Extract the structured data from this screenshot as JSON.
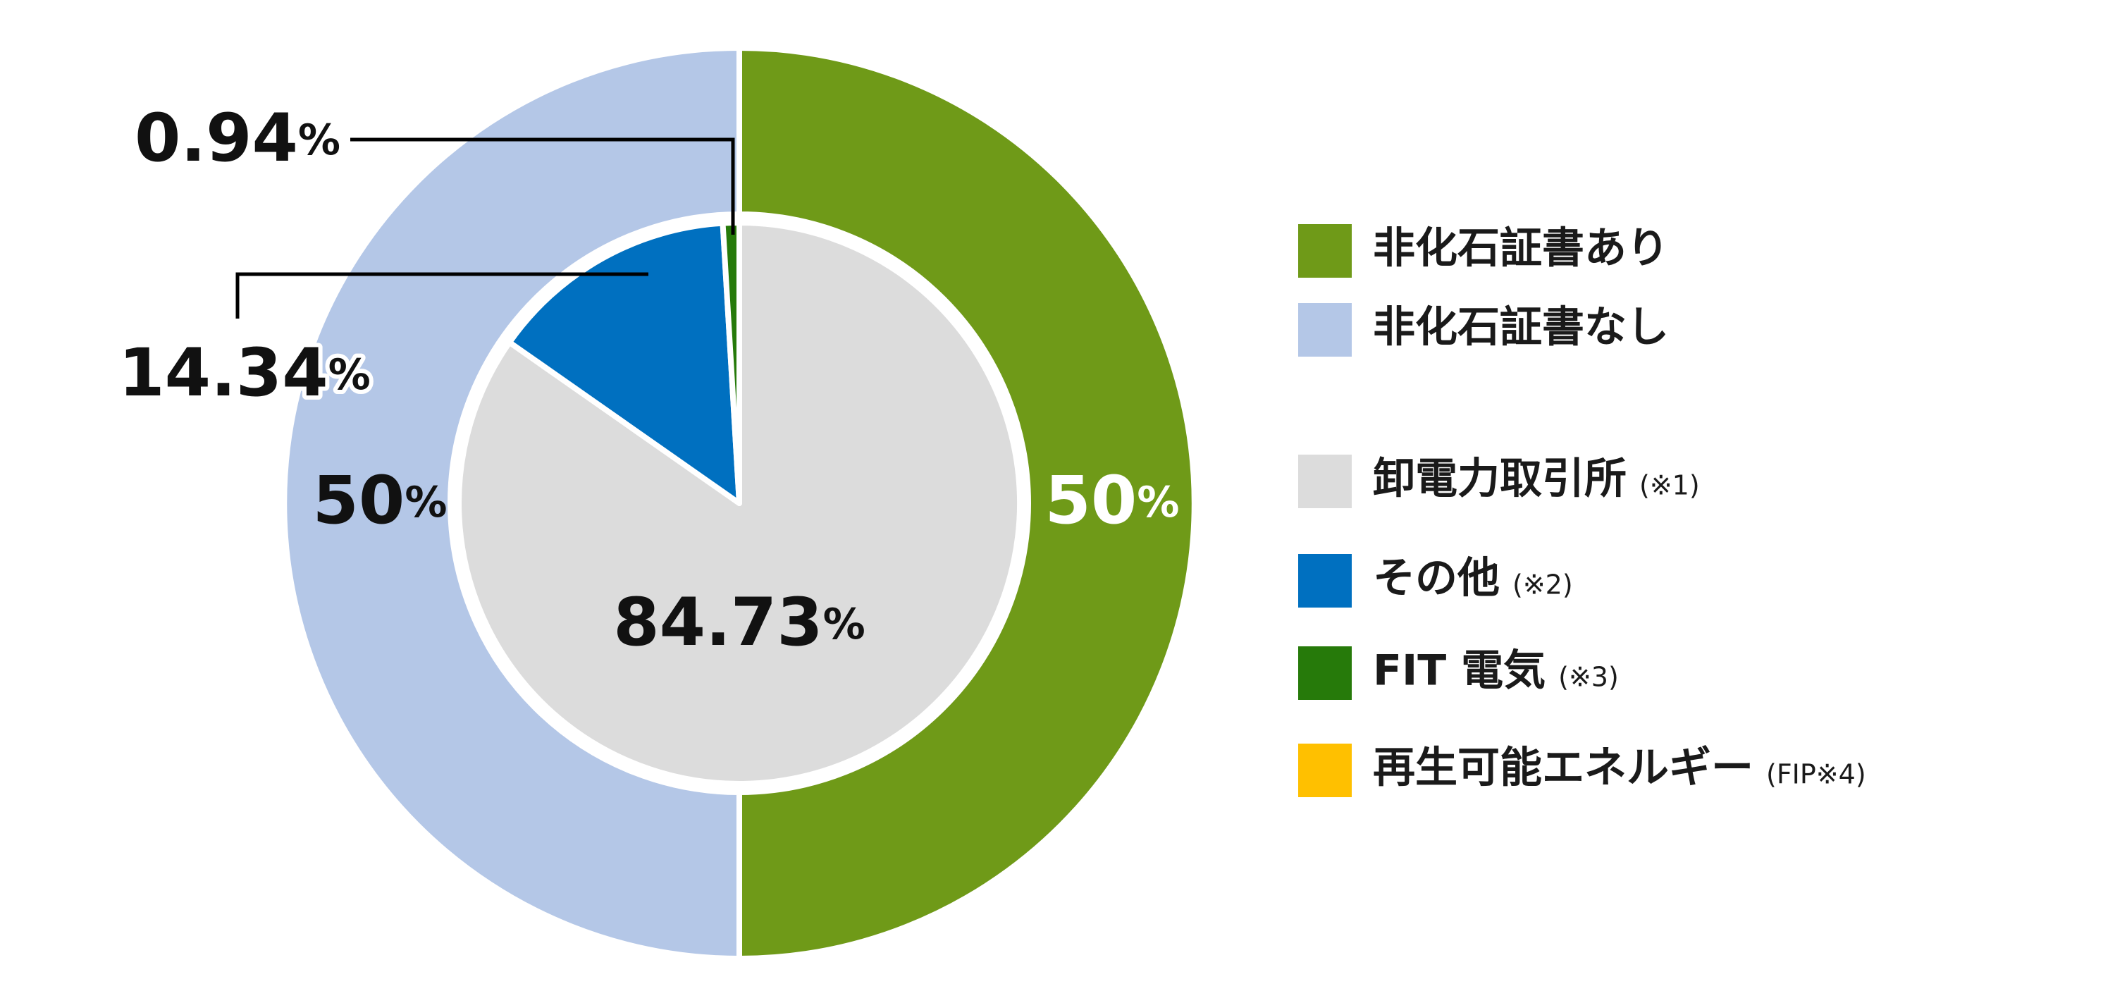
{
  "chart_data": [
    {
      "type": "pie",
      "categories": [
        "非化石証書あり",
        "非化石証書なし"
      ],
      "values": [
        50,
        50
      ],
      "value_labels": [
        "50%",
        "50%"
      ],
      "colors": [
        "#6f9a18",
        "#b4c7e7"
      ]
    },
    {
      "type": "pie",
      "categories": [
        "卸電力取引所",
        "その他",
        "FIT 電気",
        "再生可能エネルギー"
      ],
      "notes": [
        "(※1)",
        "(※2)",
        "(※3)",
        "(FIP※4)"
      ],
      "values": [
        84.73,
        14.34,
        0.94,
        0
      ],
      "value_labels": [
        "84.73%",
        "14.34%",
        "0.94%",
        null
      ],
      "colors": [
        "#dcdcdc",
        "#0070c0",
        "#267a0a",
        "#ffc000"
      ]
    }
  ]
}
